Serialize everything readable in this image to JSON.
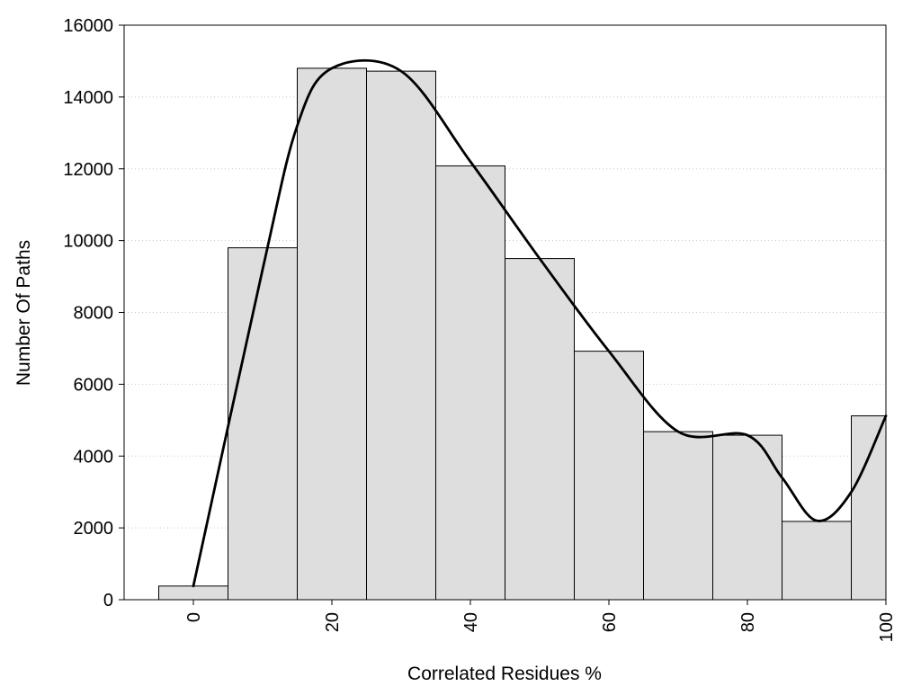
{
  "chart_data": {
    "type": "bar",
    "title": "",
    "xlabel": "Correlated Residues %",
    "ylabel": "Number Of Paths",
    "xlim": [
      -10,
      100
    ],
    "ylim": [
      0,
      16000
    ],
    "grid": true,
    "bins": {
      "x": [
        0,
        10,
        20,
        30,
        40,
        50,
        60,
        70,
        80,
        90,
        100
      ],
      "values": [
        380,
        9800,
        14800,
        14720,
        12080,
        9500,
        6920,
        4680,
        4580,
        2180,
        5120
      ]
    },
    "trend_line": {
      "x": [
        0,
        10,
        15,
        20,
        30,
        40,
        50,
        60,
        70,
        80,
        85,
        90,
        95,
        100
      ],
      "y": [
        380,
        9200,
        13200,
        14800,
        14720,
        12200,
        9500,
        6920,
        4680,
        4580,
        3400,
        2200,
        3000,
        5120
      ]
    },
    "x_ticks": [
      "0",
      "20",
      "40",
      "60",
      "80",
      "100"
    ],
    "y_ticks": [
      "0",
      "2000",
      "4000",
      "6000",
      "8000",
      "10000",
      "12000",
      "14000",
      "16000"
    ]
  }
}
